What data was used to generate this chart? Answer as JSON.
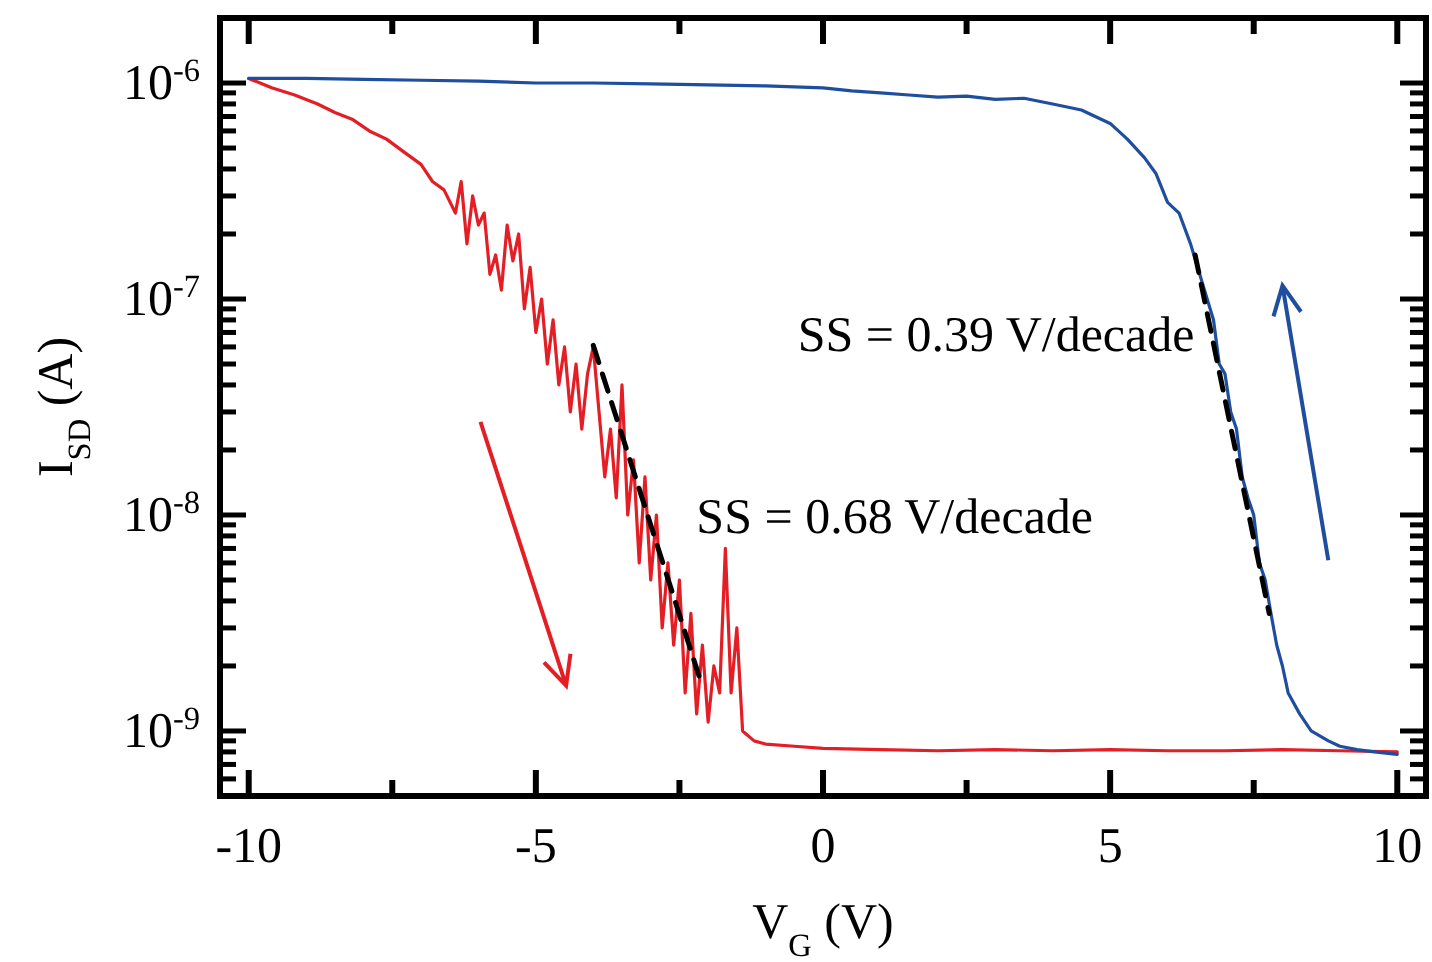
{
  "chart_data": {
    "type": "line",
    "xlabel": "V$_{G}$ (V)",
    "ylabel": "I$_{SD}$ (A)",
    "log": "y",
    "xlim": [
      -10.5,
      10.5
    ],
    "ylim": [
      5e-10,
      2e-06
    ],
    "xticks": [
      -10,
      {
        "value": -7.5,
        "label": null
      },
      -5,
      {
        "value": -2.5,
        "label": null
      },
      0,
      {
        "value": 2.5,
        "label": null
      },
      5,
      {
        "value": 7.5,
        "label": null
      },
      10
    ],
    "yticks": [
      {
        "value": 5e-10,
        "label": null
      },
      {
        "value": 6e-10,
        "label": null
      },
      {
        "value": 7e-10,
        "label": null
      },
      {
        "value": 8e-10,
        "label": null
      },
      {
        "value": 9e-10,
        "label": null
      },
      {
        "value": 1e-09,
        "label": "10$^{-9}$"
      },
      {
        "value": 2e-09,
        "label": null
      },
      {
        "value": 3e-09,
        "label": null
      },
      {
        "value": 4e-09,
        "label": null
      },
      {
        "value": 5e-09,
        "label": null
      },
      {
        "value": 6e-09,
        "label": null
      },
      {
        "value": 7e-09,
        "label": null
      },
      {
        "value": 8e-09,
        "label": null
      },
      {
        "value": 9e-09,
        "label": null
      },
      {
        "value": 1e-08,
        "label": "10$^{-8}$"
      },
      {
        "value": 2e-08,
        "label": null
      },
      {
        "value": 3e-08,
        "label": null
      },
      {
        "value": 4e-08,
        "label": null
      },
      {
        "value": 5e-08,
        "label": null
      },
      {
        "value": 6e-08,
        "label": null
      },
      {
        "value": 7e-08,
        "label": null
      },
      {
        "value": 8e-08,
        "label": null
      },
      {
        "value": 9e-08,
        "label": null
      },
      {
        "value": 1e-07,
        "label": "10$^{-7}$"
      },
      {
        "value": 2e-07,
        "label": null
      },
      {
        "value": 3e-07,
        "label": null
      },
      {
        "value": 4e-07,
        "label": null
      },
      {
        "value": 5e-07,
        "label": null
      },
      {
        "value": 6e-07,
        "label": null
      },
      {
        "value": 7e-07,
        "label": null
      },
      {
        "value": 8e-07,
        "label": null
      },
      {
        "value": 9e-07,
        "label": null
      },
      {
        "value": 1e-06,
        "label": "10$^{-6}$"
      },
      {
        "value": 2e-06,
        "label": null
      }
    ],
    "grid": false,
    "marker": "none",
    "line_style": "solid",
    "series": [
      {
        "color": "#e41e25",
        "x": [
          -10,
          -9.6,
          -9.2,
          -8.8,
          -8.5,
          -8.2,
          -7.9,
          -7.6,
          -7.3,
          -7.0,
          -6.8,
          -6.6,
          -6.4,
          -6.3,
          -6.2,
          -6.1,
          -6.0,
          -5.9,
          -5.8,
          -5.7,
          -5.6,
          -5.5,
          -5.4,
          -5.3,
          -5.2,
          -5.1,
          -5.0,
          -4.9,
          -4.8,
          -4.7,
          -4.6,
          -4.5,
          -4.4,
          -4.3,
          -4.2,
          -4.1,
          -4.0,
          -3.9,
          -3.8,
          -3.7,
          -3.6,
          -3.5,
          -3.4,
          -3.3,
          -3.2,
          -3.1,
          -3.0,
          -2.9,
          -2.8,
          -2.7,
          -2.6,
          -2.5,
          -2.4,
          -2.3,
          -2.2,
          -2.1,
          -2.0,
          -1.9,
          -1.8,
          -1.7,
          -1.6,
          -1.5,
          -1.4,
          -1.2,
          -1.0,
          -0.5,
          0,
          1,
          2,
          3,
          4,
          5,
          6,
          7,
          8,
          9,
          10
        ],
        "values": [
          1.05e-06,
          9.5e-07,
          8.8e-07,
          8e-07,
          7.3e-07,
          6.8e-07,
          6e-07,
          5.5e-07,
          4.8e-07,
          4.2e-07,
          3.5e-07,
          3.2e-07,
          2.5e-07,
          3.5e-07,
          1.8e-07,
          3e-07,
          2.2e-07,
          2.5e-07,
          1.3e-07,
          1.6e-07,
          1.1e-07,
          2.2e-07,
          1.5e-07,
          2e-07,
          9e-08,
          1.4e-07,
          7e-08,
          1e-07,
          5e-08,
          8e-08,
          4e-08,
          6e-08,
          3e-08,
          5e-08,
          2.5e-08,
          4.5e-08,
          6e-08,
          3e-08,
          1.5e-08,
          2.5e-08,
          1.2e-08,
          4e-08,
          1e-08,
          1.8e-08,
          6e-09,
          1.5e-08,
          5e-09,
          1e-08,
          3e-09,
          6e-09,
          2.5e-09,
          5e-09,
          1.5e-09,
          3.5e-09,
          1.2e-09,
          2.5e-09,
          1.1e-09,
          2e-09,
          1.5e-09,
          7e-09,
          1.5e-09,
          3e-09,
          1e-09,
          9e-10,
          8.7e-10,
          8.5e-10,
          8.3e-10,
          8.2e-10,
          8.1e-10,
          8.2e-10,
          8.1e-10,
          8.2e-10,
          8.1e-10,
          8.1e-10,
          8.2e-10,
          8.1e-10,
          8e-10
        ]
      },
      {
        "color": "#1f4e9e",
        "x": [
          -10,
          -9,
          -8,
          -7,
          -6,
          -5,
          -4,
          -3,
          -2,
          -1,
          -0.5,
          0,
          0.5,
          1,
          1.5,
          2,
          2.5,
          3,
          3.5,
          4,
          4.5,
          5,
          5.3,
          5.6,
          5.8,
          6.0,
          6.2,
          6.4,
          6.6,
          6.8,
          6.9,
          7.0,
          7.1,
          7.2,
          7.3,
          7.4,
          7.5,
          7.6,
          7.7,
          7.8,
          7.9,
          8.0,
          8.1,
          8.3,
          8.5,
          8.8,
          9.0,
          9.3,
          9.6,
          10
        ],
        "values": [
          1.05e-06,
          1.05e-06,
          1.04e-06,
          1.03e-06,
          1.02e-06,
          1e-06,
          1e-06,
          9.9e-07,
          9.8e-07,
          9.7e-07,
          9.6e-07,
          9.5e-07,
          9.2e-07,
          9e-07,
          8.8e-07,
          8.6e-07,
          8.7e-07,
          8.4e-07,
          8.5e-07,
          8e-07,
          7.5e-07,
          6.5e-07,
          5.5e-07,
          4.5e-07,
          3.8e-07,
          2.8e-07,
          2.5e-07,
          1.8e-07,
          1.2e-07,
          8e-08,
          5e-08,
          4.5e-08,
          3e-08,
          2.5e-08,
          1.5e-08,
          1.2e-08,
          1e-08,
          6e-09,
          5e-09,
          3.5e-09,
          2.5e-09,
          2e-09,
          1.5e-09,
          1.2e-09,
          1e-09,
          9e-10,
          8.5e-10,
          8.2e-10,
          8e-10,
          7.8e-10
        ]
      },
      {
        "color": "#000000",
        "line_style": "dashed",
        "x": [
          -4.0,
          -2.16
        ],
        "values": [
          6.1e-08,
          1.8e-09
        ]
      },
      {
        "color": "#000000",
        "line_style": "dashed",
        "x": [
          6.48,
          7.77
        ],
        "values": [
          1.6e-07,
          3.5e-09
        ]
      }
    ],
    "annotations": [
      "SS = 0.39 V/decade",
      "SS = 0.68 V/decade"
    ]
  }
}
